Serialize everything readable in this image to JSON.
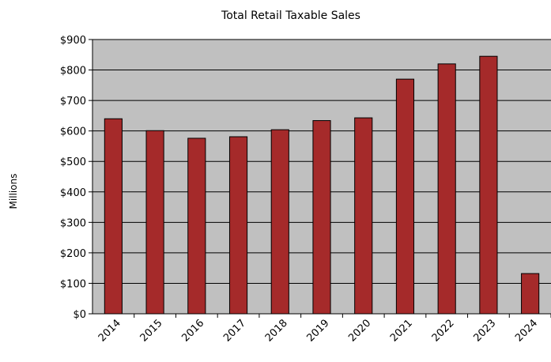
{
  "colors": {
    "bar_fill": "#a52a2a",
    "bar_stroke": "#000000",
    "plot_background": "#c0c0c0",
    "gridline": "#000000"
  },
  "chart_data": {
    "type": "bar",
    "title": "Total Retail Taxable Sales",
    "xlabel": "",
    "ylabel": "Millions",
    "categories": [
      "2014",
      "2015",
      "2016",
      "2017",
      "2018",
      "2019",
      "2020",
      "2021",
      "2022",
      "2023",
      "2024"
    ],
    "values": [
      640,
      601,
      576,
      581,
      604,
      634,
      643,
      770,
      820,
      845,
      132
    ],
    "ylim": [
      0,
      900
    ],
    "yticks": [
      0,
      100,
      200,
      300,
      400,
      500,
      600,
      700,
      800,
      900
    ],
    "ytick_labels": [
      "$0",
      "$100",
      "$200",
      "$300",
      "$400",
      "$500",
      "$600",
      "$700",
      "$800",
      "$900"
    ],
    "grid": true,
    "legend": "none"
  }
}
